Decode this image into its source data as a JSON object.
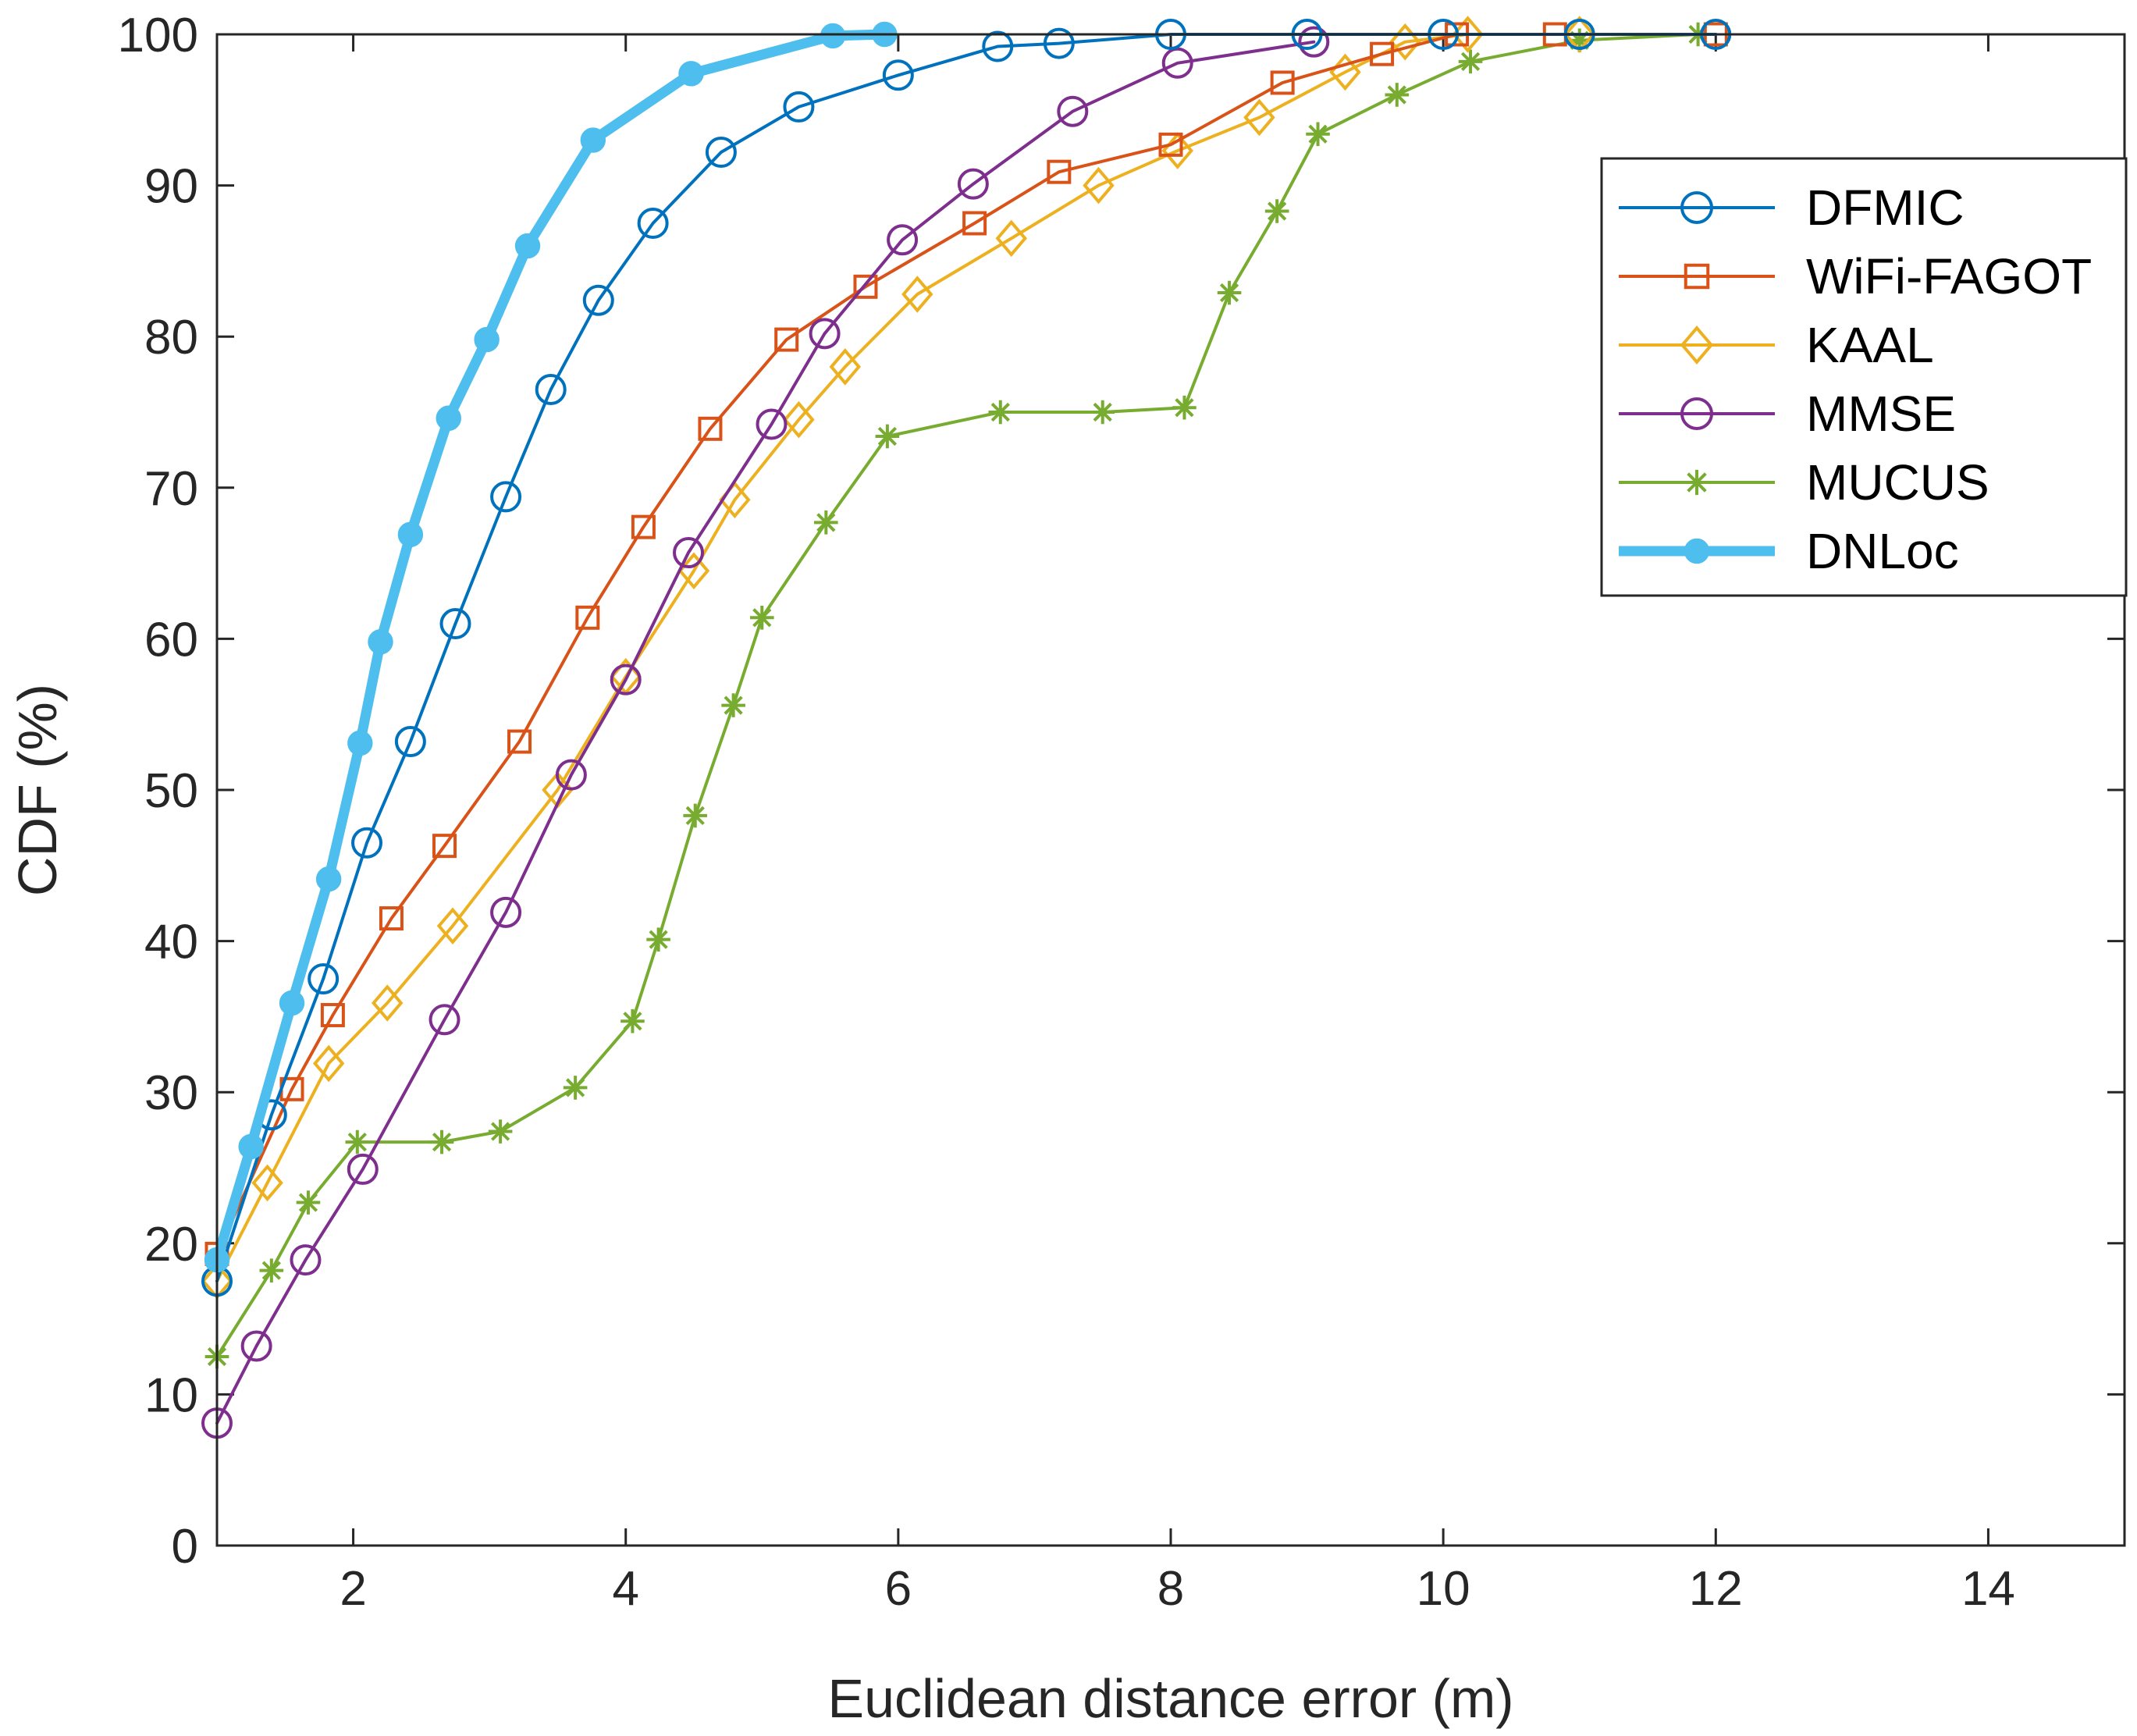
{
  "chart_data": {
    "type": "line",
    "title": "",
    "xlabel": "Euclidean distance error (m)",
    "ylabel": "CDF (%)",
    "xlim": [
      1,
      15
    ],
    "ylim": [
      0,
      100
    ],
    "xticks": [
      2,
      4,
      6,
      8,
      10,
      12,
      14
    ],
    "yticks": [
      0,
      10,
      20,
      30,
      40,
      50,
      60,
      70,
      80,
      90,
      100
    ],
    "legend_position": "top-right",
    "series": [
      {
        "name": "DFMIC",
        "color": "#0072BD",
        "marker": "circle",
        "line_width": "normal",
        "x": [
          1.0,
          1.4,
          1.78,
          2.1,
          2.42,
          2.75,
          3.12,
          3.45,
          3.8,
          4.2,
          4.7,
          5.27,
          6.0,
          6.73,
          7.18,
          8.0,
          9.0,
          10.0,
          11.0,
          12.0
        ],
        "y": [
          17.5,
          28.5,
          37.5,
          46.5,
          53.2,
          61.0,
          69.4,
          76.5,
          82.4,
          87.5,
          92.2,
          95.2,
          97.3,
          99.2,
          99.4,
          100,
          100,
          100,
          100,
          100
        ]
      },
      {
        "name": "WiFi-FAGOT",
        "color": "#D95319",
        "marker": "square",
        "line_width": "normal",
        "x": [
          1.0,
          1.55,
          1.85,
          2.28,
          2.67,
          3.22,
          3.72,
          4.13,
          4.62,
          5.18,
          5.76,
          6.56,
          7.18,
          8.0,
          8.82,
          9.55,
          10.1,
          10.82,
          12.0
        ],
        "y": [
          19.3,
          30.2,
          35.1,
          41.5,
          46.3,
          53.2,
          61.4,
          67.4,
          73.9,
          79.8,
          83.3,
          87.5,
          90.9,
          92.7,
          96.8,
          98.7,
          100,
          100,
          100
        ]
      },
      {
        "name": "KAAL",
        "color": "#EDB120",
        "marker": "diamond",
        "line_width": "normal",
        "x": [
          1.0,
          1.37,
          1.82,
          2.25,
          2.73,
          3.5,
          4.0,
          4.5,
          4.8,
          5.27,
          5.61,
          6.14,
          6.83,
          7.47,
          8.05,
          8.65,
          9.28,
          9.72,
          10.18,
          11.0
        ],
        "y": [
          17.5,
          24.0,
          31.9,
          35.9,
          41.0,
          50.0,
          57.5,
          64.5,
          69.2,
          74.5,
          78.0,
          82.8,
          86.5,
          90.0,
          92.3,
          94.5,
          97.5,
          99.5,
          100,
          100
        ]
      },
      {
        "name": "MMSE",
        "color": "#7E2F8E",
        "marker": "circle",
        "line_width": "normal",
        "x": [
          1.0,
          1.29,
          1.65,
          2.07,
          2.67,
          3.12,
          3.6,
          4.0,
          4.46,
          5.07,
          5.46,
          6.03,
          6.55,
          7.28,
          8.05,
          9.05
        ],
        "y": [
          8.1,
          13.2,
          18.9,
          24.9,
          34.8,
          41.9,
          51.0,
          57.3,
          65.7,
          74.2,
          80.2,
          86.4,
          90.1,
          94.9,
          98.1,
          99.5
        ]
      },
      {
        "name": "MUCUS",
        "color": "#77AC30",
        "marker": "asterisk",
        "line_width": "normal",
        "x": [
          1.0,
          1.4,
          1.67,
          2.03,
          2.65,
          3.08,
          3.63,
          4.05,
          4.24,
          4.51,
          4.79,
          5.0,
          5.47,
          5.92,
          6.75,
          7.5,
          8.1,
          8.43,
          8.78,
          9.08,
          9.66,
          10.2,
          11.0,
          11.87
        ],
        "y": [
          12.5,
          18.2,
          22.7,
          26.7,
          26.7,
          27.4,
          30.3,
          34.7,
          40.1,
          48.3,
          55.6,
          61.4,
          67.7,
          73.4,
          75.0,
          75.0,
          75.3,
          82.9,
          88.3,
          93.4,
          96.0,
          98.2,
          99.6,
          100
        ]
      },
      {
        "name": "DNLoc",
        "color": "#4DBEEE",
        "marker": "filled-circle",
        "line_width": "thick",
        "x": [
          1.0,
          1.25,
          1.55,
          1.82,
          2.05,
          2.2,
          2.42,
          2.7,
          2.98,
          3.28,
          3.76,
          4.48,
          5.52,
          5.9
        ],
        "y": [
          18.9,
          26.4,
          35.9,
          44.1,
          53.1,
          59.8,
          66.9,
          74.6,
          79.8,
          86.0,
          93.0,
          97.4,
          99.9,
          100
        ]
      }
    ]
  }
}
